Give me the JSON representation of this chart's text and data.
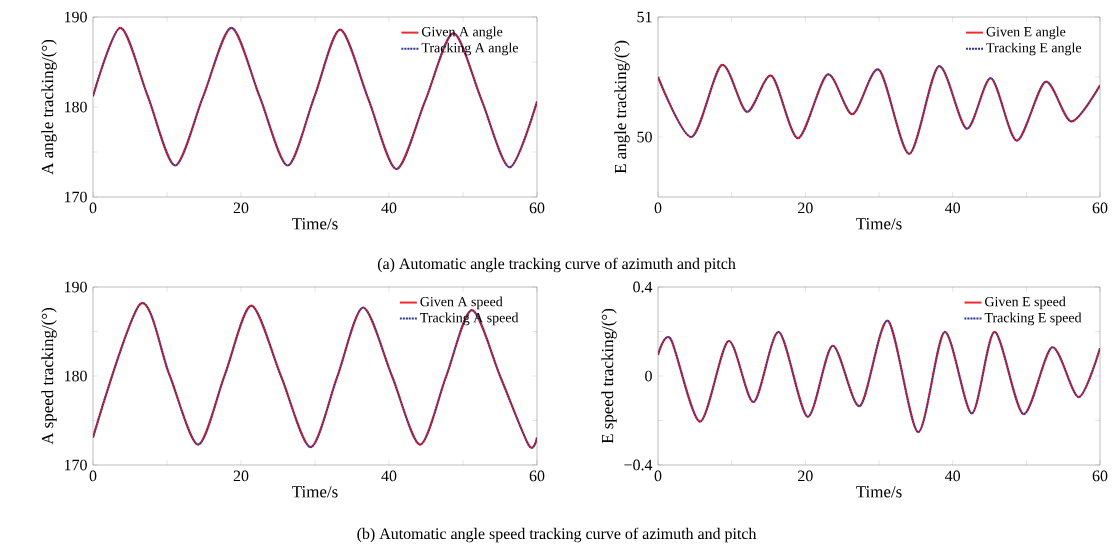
{
  "chart_data": [
    {
      "type": "line",
      "xlabel": "Time/s",
      "ylabel": "A angle tracking/(°)",
      "annotations": [
        "(a) Automatic angle tracking curve of azimuth and pitch"
      ],
      "xlim": [
        0,
        60
      ],
      "ylim": [
        170,
        190
      ],
      "xticks": [
        0,
        {
          "value": 10,
          "label": null
        },
        20,
        {
          "value": 30,
          "label": null
        },
        40,
        {
          "value": 50,
          "label": null
        },
        60
      ],
      "yticks": [
        170,
        {
          "value": 175,
          "label": null
        },
        180,
        {
          "value": 185,
          "label": null
        },
        190
      ],
      "legend": "top right",
      "x": [
        0,
        3.7,
        7.4,
        11.1,
        14.9,
        18.7,
        22.5,
        26.3,
        29.9,
        33.4,
        37.2,
        41.0,
        44.9,
        48.7,
        52.5,
        56.3,
        60
      ],
      "series": [
        {
          "name": "Given A angle",
          "color": "#ee2a2e",
          "line_style": "solid",
          "values": [
            181.2,
            188.8,
            181.2,
            173.5,
            181.2,
            188.8,
            181.2,
            173.5,
            181.1,
            188.6,
            180.9,
            173.1,
            180.7,
            188.2,
            180.8,
            173.3,
            180.6
          ]
        },
        {
          "name": "Tracking A angle",
          "color": "#2a3596",
          "line_style": "dotted",
          "values": [
            181.2,
            188.8,
            181.2,
            173.5,
            181.2,
            188.8,
            181.2,
            173.5,
            181.1,
            188.6,
            180.9,
            173.1,
            180.7,
            188.2,
            180.8,
            173.3,
            180.6
          ]
        }
      ]
    },
    {
      "type": "line",
      "xlabel": "Time/s",
      "ylabel": "E angle tracking/(°)",
      "xlim": [
        0,
        60
      ],
      "ylim": [
        49.5,
        51
      ],
      "xticks": [
        0,
        {
          "value": 10,
          "label": null
        },
        20,
        {
          "value": 30,
          "label": null
        },
        40,
        {
          "value": 50,
          "label": null
        },
        60
      ],
      "yticks": [
        50,
        {
          "value": 50.5,
          "label": null
        },
        51
      ],
      "legend": "top right",
      "x": [
        0,
        4.55,
        8.65,
        12.06,
        15.4,
        19.0,
        23.0,
        26.4,
        30.0,
        34.1,
        38.1,
        41.9,
        45.2,
        48.7,
        52.6,
        56.1,
        60
      ],
      "series": [
        {
          "name": "Given E angle",
          "color": "#ee2a2e",
          "line_style": "solid",
          "values": [
            50.5,
            50.0,
            50.6,
            50.21,
            50.51,
            49.99,
            50.52,
            50.19,
            50.56,
            49.86,
            50.59,
            50.07,
            50.49,
            49.97,
            50.46,
            50.13,
            50.43
          ]
        },
        {
          "name": "Tracking E angle",
          "color": "#2a3596",
          "line_style": "dotted",
          "values": [
            50.5,
            50.0,
            50.6,
            50.21,
            50.51,
            49.99,
            50.52,
            50.19,
            50.56,
            49.86,
            50.59,
            50.07,
            50.49,
            49.97,
            50.46,
            50.13,
            50.43
          ]
        }
      ]
    },
    {
      "type": "line",
      "xlabel": "Time/s",
      "ylabel": "A speed tracking/(°)",
      "annotations": [
        "(b) Automatic angle speed tracking curve of azimuth and pitch"
      ],
      "xlim": [
        0,
        60
      ],
      "ylim": [
        170,
        190
      ],
      "xticks": [
        0,
        {
          "value": 10,
          "label": null
        },
        20,
        {
          "value": 30,
          "label": null
        },
        40,
        {
          "value": 50,
          "label": null
        },
        60
      ],
      "yticks": [
        170,
        {
          "value": 175,
          "label": null
        },
        180,
        {
          "value": 185,
          "label": null
        },
        190
      ],
      "legend": "top right",
      "x": [
        0,
        6.4,
        10.3,
        14.2,
        17.8,
        21.4,
        25.4,
        29.4,
        33.0,
        36.5,
        40.4,
        44.2,
        47.7,
        51.2,
        55.1,
        58.9,
        60
      ],
      "series": [
        {
          "name": "Given A speed",
          "color": "#ee2a2e",
          "line_style": "solid",
          "values": [
            173.1,
            188.1,
            180.2,
            172.3,
            180.1,
            187.9,
            180.0,
            172.0,
            179.9,
            187.7,
            180.0,
            172.3,
            179.9,
            187.4,
            179.8,
            172.2,
            173.1
          ]
        },
        {
          "name": "Tracking A speed",
          "color": "#2a3596",
          "line_style": "dotted",
          "values": [
            173.1,
            188.1,
            180.2,
            172.3,
            180.1,
            187.9,
            180.0,
            172.0,
            179.9,
            187.7,
            180.0,
            172.3,
            179.9,
            187.4,
            179.8,
            172.2,
            173.1
          ]
        }
      ]
    },
    {
      "type": "line",
      "xlabel": "Time/s",
      "ylabel": "E speed tracking/(°)",
      "xlim": [
        0,
        60
      ],
      "ylim": [
        -0.4,
        0.4
      ],
      "xticks": [
        0,
        {
          "value": 10,
          "label": null
        },
        20,
        {
          "value": 30,
          "label": null
        },
        40,
        {
          "value": 50,
          "label": null
        },
        60
      ],
      "yticks": [
        {
          "value": -0.4,
          "label": "−0.4"
        },
        {
          "value": -0.2,
          "label": null
        },
        0,
        {
          "value": 0.2,
          "label": null
        },
        0.4
      ],
      "legend": "top right",
      "x": [
        0,
        1.73,
        5.7,
        9.56,
        12.97,
        16.4,
        20.3,
        23.7,
        27.4,
        31.2,
        35.3,
        38.9,
        42.6,
        45.7,
        49.6,
        53.5,
        57.1,
        60
      ],
      "series": [
        {
          "name": "Given E speed",
          "color": "#ee2a2e",
          "line_style": "solid",
          "values": [
            0.095,
            0.166,
            -0.205,
            0.157,
            -0.117,
            0.198,
            -0.183,
            0.136,
            -0.135,
            0.248,
            -0.252,
            0.198,
            -0.168,
            0.198,
            -0.171,
            0.129,
            -0.095,
            0.125
          ]
        },
        {
          "name": "Tracking E speed",
          "color": "#2a3596",
          "line_style": "dotted",
          "values": [
            0.095,
            0.166,
            -0.205,
            0.157,
            -0.117,
            0.198,
            -0.183,
            0.136,
            -0.135,
            0.248,
            -0.252,
            0.198,
            -0.168,
            0.198,
            -0.171,
            0.129,
            -0.095,
            0.125
          ]
        }
      ]
    }
  ]
}
